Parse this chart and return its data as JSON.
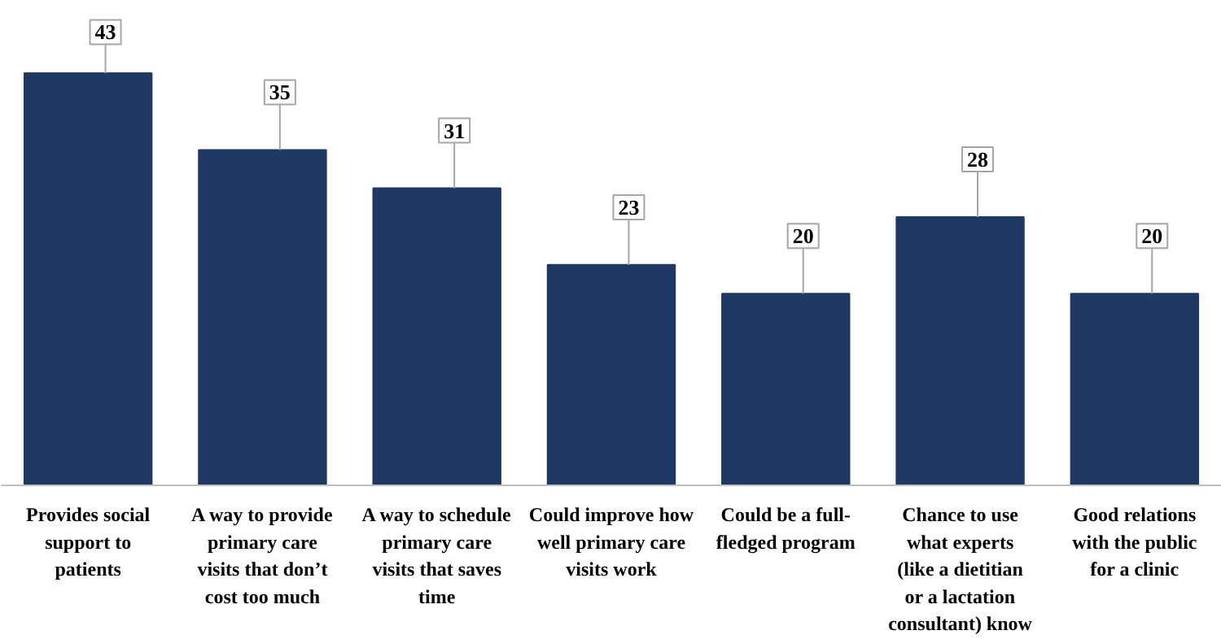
{
  "chart_data": {
    "type": "bar",
    "categories": [
      "Provides social support to patients",
      "A way to provide primary care visits that don’t cost too much",
      "A way to schedule primary care visits that saves time",
      "Could improve how well primary care visits work",
      "Could be a full-fledged program",
      "Chance to use what experts (like a dietitian or a lactation consultant) know",
      "Good relations with the public for a clinic"
    ],
    "values": [
      43,
      35,
      31,
      23,
      20,
      28,
      20
    ],
    "color": "#1f3864",
    "data_labels": true
  }
}
